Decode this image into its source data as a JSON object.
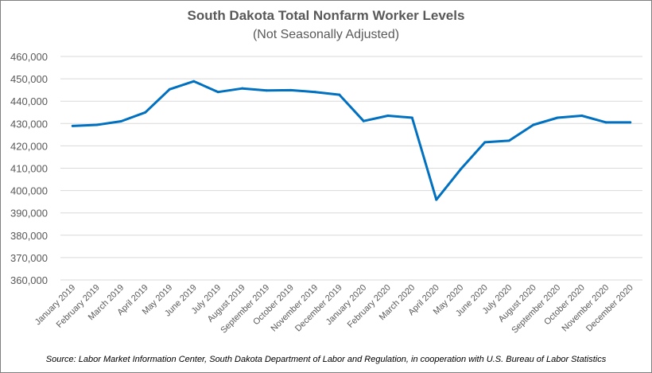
{
  "chart_data": {
    "type": "line",
    "title": "South Dakota Total Nonfarm Worker Levels",
    "subtitle": "(Not Seasonally Adjusted)",
    "source": "Source: Labor Market Information Center, South Dakota Department of Labor and Regulation, in cooperation with U.S. Bureau of Labor Statistics",
    "categories": [
      "January 2019",
      "February 2019",
      "March 2019",
      "April 2019",
      "May 2019",
      "June 2019",
      "July 2019",
      "August 2019",
      "September 2019",
      "October 2019",
      "November 2019",
      "December 2019",
      "January 2020",
      "February 2020",
      "March 2020",
      "April 2020",
      "May 2020",
      "June 2020",
      "July 2020",
      "August 2020",
      "September 2020",
      "October 2020",
      "November 2020",
      "December 2020"
    ],
    "values": [
      428900,
      429400,
      431000,
      435000,
      445300,
      448900,
      444100,
      445700,
      444800,
      444900,
      444100,
      442900,
      431100,
      433500,
      432600,
      395900,
      409500,
      421600,
      422300,
      429400,
      432600,
      433500,
      430500,
      430500
    ],
    "ylim": [
      360000,
      460000
    ],
    "yticks": [
      "360,000",
      "370,000",
      "380,000",
      "390,000",
      "400,000",
      "410,000",
      "420,000",
      "430,000",
      "440,000",
      "450,000",
      "460,000"
    ],
    "grid": true,
    "line_color": "#0070C0",
    "legend": "none"
  }
}
